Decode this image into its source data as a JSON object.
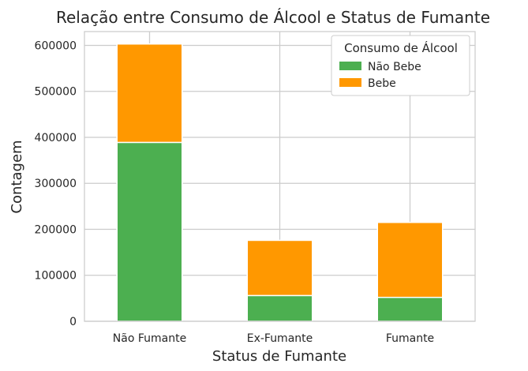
{
  "chart_data": {
    "type": "bar",
    "stacked": true,
    "title": "Relação entre Consumo de Álcool e Status de Fumante",
    "xlabel": "Status de Fumante",
    "ylabel": "Contagem",
    "categories": [
      "Não Fumante",
      "Ex-Fumante",
      "Fumante"
    ],
    "series": [
      {
        "name": "Não Bebe",
        "values": [
          389000,
          56000,
          52000
        ],
        "color": "#4caf50"
      },
      {
        "name": "Bebe",
        "values": [
          214000,
          120000,
          163000
        ],
        "color": "#ff9800"
      }
    ],
    "ylim": [
      0,
      630000
    ],
    "yticks": [
      0,
      100000,
      200000,
      300000,
      400000,
      500000,
      600000
    ],
    "ytick_labels": [
      "0",
      "100000",
      "200000",
      "300000",
      "400000",
      "500000",
      "600000"
    ],
    "legend": {
      "title": "Consumo de Álcool",
      "position": "top-right"
    },
    "grid": true
  }
}
